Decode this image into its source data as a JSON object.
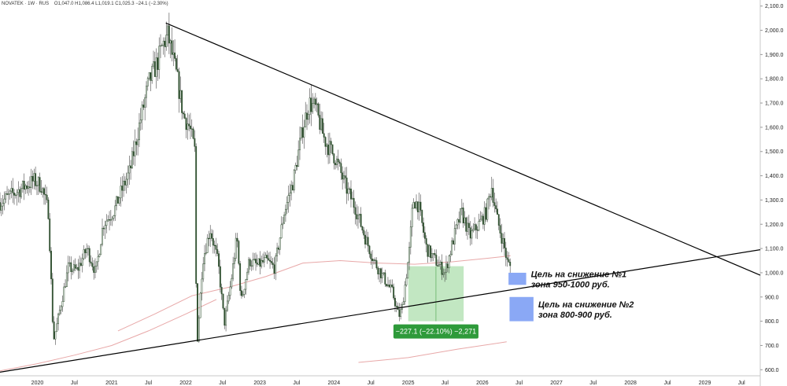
{
  "header": {
    "symbol": "NOVATEK · 1W · RUS",
    "ohlc": "O1,047.0  H1,086.4  L1,019.1  C1,025.3  −24.1 (−2.30%)"
  },
  "chart_data": {
    "type": "candlestick",
    "title": "",
    "xlabel": "",
    "ylabel": "",
    "x_range": [
      "2019-07-01",
      "2029-10-01"
    ],
    "ylim": [
      575,
      2125
    ],
    "y_ticks": [
      600,
      700,
      800,
      900,
      1000,
      1100,
      1200,
      1300,
      1400,
      1500,
      1600,
      1700,
      1800,
      1900,
      2000,
      2100
    ],
    "y_tick_labels": [
      "600.0",
      "700.0",
      "800.0",
      "900.0",
      "1,000.0",
      "1,100.0",
      "1,200.0",
      "1,300.0",
      "1,400.0",
      "1,500.0",
      "1,600.0",
      "1,700.0",
      "1,800.0",
      "1,900.0",
      "2,000.0",
      "2,100.0"
    ],
    "x_ticks": [
      {
        "date": "2020-01-01",
        "label": "2020"
      },
      {
        "date": "2020-07-01",
        "label": "Jul"
      },
      {
        "date": "2021-01-01",
        "label": "2021"
      },
      {
        "date": "2021-07-01",
        "label": "Jul"
      },
      {
        "date": "2022-01-01",
        "label": "2022"
      },
      {
        "date": "2022-07-01",
        "label": "Jul"
      },
      {
        "date": "2023-01-01",
        "label": "2023"
      },
      {
        "date": "2023-07-01",
        "label": "Jul"
      },
      {
        "date": "2024-01-01",
        "label": "2024"
      },
      {
        "date": "2024-07-01",
        "label": "Jul"
      },
      {
        "date": "2025-01-01",
        "label": "2025"
      },
      {
        "date": "2025-07-01",
        "label": "Jul"
      },
      {
        "date": "2026-01-01",
        "label": "2026"
      },
      {
        "date": "2026-07-01",
        "label": "Jul"
      },
      {
        "date": "2027-01-01",
        "label": "2027"
      },
      {
        "date": "2027-07-01",
        "label": "Jul"
      },
      {
        "date": "2028-01-01",
        "label": "2028"
      },
      {
        "date": "2028-07-01",
        "label": "Jul"
      },
      {
        "date": "2029-01-01",
        "label": "2029"
      },
      {
        "date": "2029-07-01",
        "label": "Jul"
      }
    ],
    "price_path": [
      [
        "2019-07-01",
        1290
      ],
      [
        "2019-10-01",
        1340
      ],
      [
        "2019-12-15",
        1380
      ],
      [
        "2020-01-20",
        1360
      ],
      [
        "2020-02-25",
        1250
      ],
      [
        "2020-03-20",
        720
      ],
      [
        "2020-04-05",
        780
      ],
      [
        "2020-06-01",
        1020
      ],
      [
        "2020-07-15",
        1010
      ],
      [
        "2020-09-01",
        1100
      ],
      [
        "2020-10-15",
        1000
      ],
      [
        "2020-11-20",
        1200
      ],
      [
        "2021-01-15",
        1260
      ],
      [
        "2021-02-15",
        1330
      ],
      [
        "2021-04-01",
        1420
      ],
      [
        "2021-05-15",
        1600
      ],
      [
        "2021-07-01",
        1780
      ],
      [
        "2021-08-15",
        1870
      ],
      [
        "2021-09-10",
        1940
      ],
      [
        "2021-10-05",
        1980
      ],
      [
        "2021-10-25",
        1900
      ],
      [
        "2021-11-20",
        1800
      ],
      [
        "2021-12-20",
        1650
      ],
      [
        "2022-01-20",
        1600
      ],
      [
        "2022-02-15",
        1500
      ],
      [
        "2022-02-24",
        680
      ],
      [
        "2022-03-25",
        1050
      ],
      [
        "2022-05-01",
        1180
      ],
      [
        "2022-06-10",
        1040
      ],
      [
        "2022-07-10",
        790
      ],
      [
        "2022-08-10",
        950
      ],
      [
        "2022-09-10",
        1150
      ],
      [
        "2022-10-01",
        880
      ],
      [
        "2022-11-10",
        1050
      ],
      [
        "2022-12-20",
        1030
      ],
      [
        "2023-02-01",
        1050
      ],
      [
        "2023-03-15",
        1020
      ],
      [
        "2023-05-01",
        1250
      ],
      [
        "2023-06-15",
        1380
      ],
      [
        "2023-08-01",
        1600
      ],
      [
        "2023-09-01",
        1700
      ],
      [
        "2023-10-01",
        1680
      ],
      [
        "2023-11-15",
        1550
      ],
      [
        "2024-01-10",
        1470
      ],
      [
        "2024-03-01",
        1350
      ],
      [
        "2024-04-15",
        1270
      ],
      [
        "2024-06-01",
        1150
      ],
      [
        "2024-07-15",
        1050
      ],
      [
        "2024-09-01",
        980
      ],
      [
        "2024-10-15",
        920
      ],
      [
        "2024-11-15",
        820
      ],
      [
        "2024-12-01",
        850
      ],
      [
        "2025-01-05",
        1080
      ],
      [
        "2025-01-25",
        1300
      ],
      [
        "2025-02-20",
        1280
      ],
      [
        "2025-04-01",
        1100
      ],
      [
        "2025-05-15",
        1050
      ],
      [
        "2025-07-01",
        1000
      ],
      [
        "2025-08-15",
        1150
      ],
      [
        "2025-09-20",
        1250
      ],
      [
        "2025-11-01",
        1150
      ],
      [
        "2025-12-15",
        1200
      ],
      [
        "2026-01-20",
        1250
      ],
      [
        "2026-02-15",
        1360
      ],
      [
        "2026-03-15",
        1220
      ],
      [
        "2026-04-15",
        1120
      ],
      [
        "2026-05-05",
        1040
      ],
      [
        "2026-05-20",
        1025
      ]
    ],
    "overlays": [
      {
        "type": "line",
        "role": "resistance",
        "color": "#000000",
        "points": [
          [
            "2021-09-25",
            2030
          ],
          [
            "2029-10-01",
            990
          ]
        ]
      },
      {
        "type": "line",
        "role": "support",
        "color": "#000000",
        "points": [
          [
            "2019-07-01",
            590
          ],
          [
            "2029-10-01",
            1095
          ]
        ]
      },
      {
        "type": "line",
        "role": "moving-average",
        "color": "#e8a8a8",
        "points": [
          [
            "2021-02-01",
            760
          ],
          [
            "2021-08-01",
            830
          ],
          [
            "2022-02-01",
            905
          ],
          [
            "2022-08-01",
            940
          ],
          [
            "2023-02-01",
            985
          ],
          [
            "2023-08-01",
            1040
          ],
          [
            "2024-02-01",
            1050
          ],
          [
            "2024-08-01",
            1040
          ],
          [
            "2025-02-01",
            1035
          ],
          [
            "2025-08-01",
            1045
          ],
          [
            "2026-02-01",
            1060
          ],
          [
            "2026-05-20",
            1070
          ]
        ]
      },
      {
        "type": "line",
        "role": "moving-average",
        "color": "#e8a8a8",
        "points": [
          [
            "2019-07-01",
            595
          ],
          [
            "2020-01-01",
            625
          ],
          [
            "2020-07-01",
            660
          ],
          [
            "2021-01-01",
            700
          ],
          [
            "2021-07-01",
            760
          ],
          [
            "2022-01-01",
            830
          ],
          [
            "2022-06-01",
            890
          ]
        ]
      },
      {
        "type": "line",
        "role": "moving-average",
        "color": "#e8a8a8",
        "points": [
          [
            "2024-05-01",
            630
          ],
          [
            "2025-01-01",
            650
          ],
          [
            "2025-09-01",
            685
          ],
          [
            "2026-05-01",
            715
          ]
        ]
      }
    ],
    "measure": {
      "from": "2025-01-01",
      "to": "2025-10-01",
      "top": 1027,
      "bottom": 800,
      "label": "−227.1 (−22.10%) −2,271",
      "color": "#8fd38f",
      "label_bg": "#2e9a3a"
    },
    "target_zones": [
      {
        "from": "2026-05-10",
        "to": "2026-08-05",
        "top": 1000,
        "bottom": 950,
        "color": "#8aa8f5",
        "text": [
          "Цель на снижение №1",
          "зона 950-1000 руб."
        ]
      },
      {
        "from": "2026-05-15",
        "to": "2026-09-10",
        "top": 900,
        "bottom": 800,
        "color": "#8aa8f5",
        "text": [
          "Цель на снижение №2",
          "зона 800-900 руб."
        ]
      }
    ]
  }
}
